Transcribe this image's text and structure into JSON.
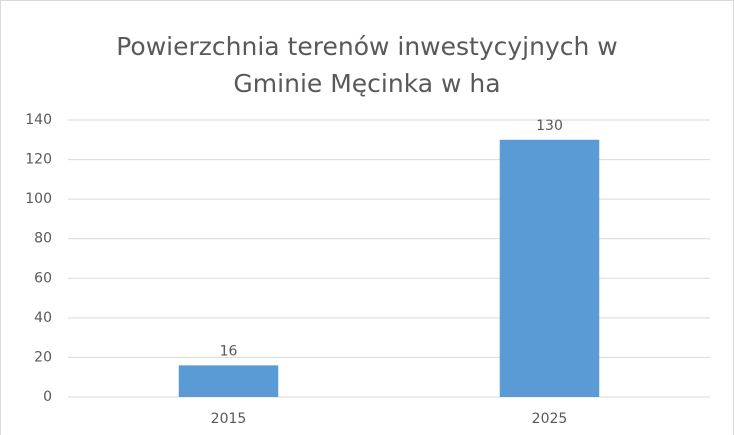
{
  "chart_data": {
    "type": "bar",
    "title": "Powierzchnia terenów inwestycyjnych w Gminie Męcinka w ha",
    "categories": [
      "2015",
      "2025"
    ],
    "values": [
      16,
      130
    ],
    "color": "#5b9bd5",
    "ylim": [
      0,
      140
    ],
    "yticks": [
      0,
      20,
      40,
      60,
      80,
      100,
      120,
      140
    ],
    "grid": true
  }
}
